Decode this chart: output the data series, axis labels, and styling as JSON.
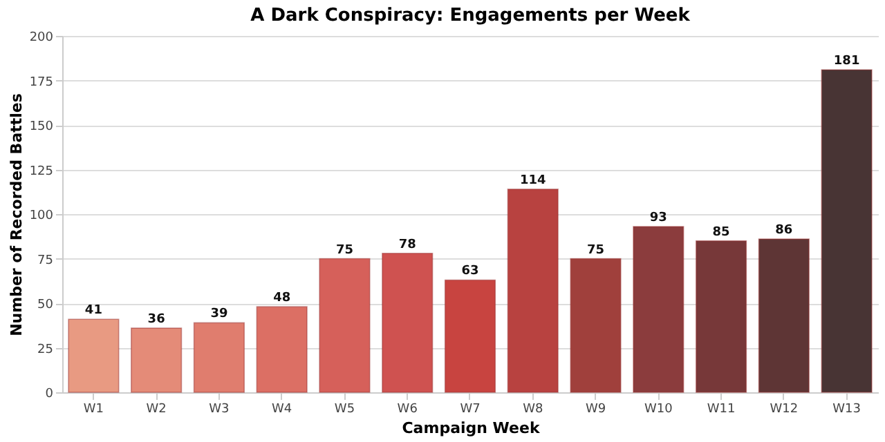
{
  "chart_data": {
    "type": "bar",
    "title": "A Dark Conspiracy: Engagements per Week",
    "xlabel": "Campaign Week",
    "ylabel": "Number of Recorded Battles",
    "categories": [
      "W1",
      "W2",
      "W3",
      "W4",
      "W5",
      "W6",
      "W7",
      "W8",
      "W9",
      "W10",
      "W11",
      "W12",
      "W13"
    ],
    "values": [
      41,
      36,
      39,
      48,
      75,
      78,
      63,
      114,
      75,
      93,
      85,
      86,
      181
    ],
    "colors": [
      "#e89a82",
      "#e48b78",
      "#e07d6e",
      "#dc6f64",
      "#d6605a",
      "#cf5250",
      "#c84440",
      "#b84240",
      "#a0403c",
      "#8b3c3d",
      "#773839",
      "#5e3535",
      "#483434"
    ],
    "ylim": [
      0,
      200
    ],
    "yticks": [
      0,
      25,
      50,
      75,
      100,
      125,
      150,
      175,
      200
    ],
    "grid": "y",
    "data_labels": true
  }
}
